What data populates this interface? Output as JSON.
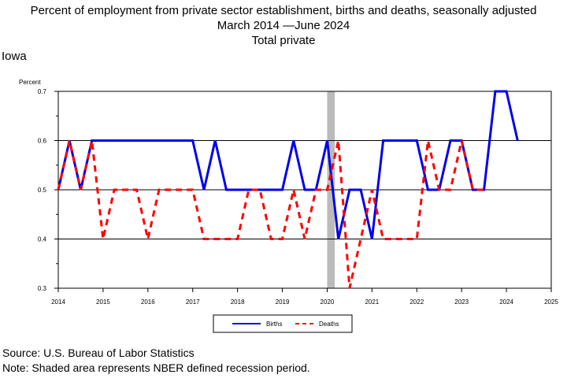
{
  "title": {
    "line1": "Percent of employment from private sector establishment, births and deaths, seasonally adjusted",
    "line2": "March 2014 —June 2024",
    "line3": "Total private"
  },
  "region": "Iowa",
  "footer": {
    "source": "Source: U.S. Bureau of Labor Statistics",
    "note": "Note: Shaded area represents NBER defined recession period."
  },
  "colors": {
    "births": "#0000ee",
    "deaths": "#ff0000",
    "recession": "#bbbbbb"
  },
  "chart_data": {
    "type": "line",
    "ylabel": "Percent",
    "ylim": [
      0.3,
      0.7
    ],
    "xlim": [
      2014,
      2025
    ],
    "yticks": [
      "0.3",
      "0.4",
      "0.5",
      "0.6",
      "0.7"
    ],
    "xticks": [
      "2014",
      "2015",
      "2016",
      "2017",
      "2018",
      "2019",
      "2020",
      "2021",
      "2022",
      "2023",
      "2024",
      "2025"
    ],
    "grid": "horizontal",
    "legend_position": "bottom",
    "recession": [
      2020.0,
      2020.17
    ],
    "series": [
      {
        "name": "Births",
        "style": "solid",
        "x": [
          2014.0,
          2014.25,
          2014.5,
          2014.75,
          2015.0,
          2015.25,
          2015.5,
          2015.75,
          2016.0,
          2016.25,
          2016.5,
          2016.75,
          2017.0,
          2017.25,
          2017.5,
          2017.75,
          2018.0,
          2018.25,
          2018.5,
          2018.75,
          2019.0,
          2019.25,
          2019.5,
          2019.75,
          2020.0,
          2020.25,
          2020.5,
          2020.75,
          2021.0,
          2021.25,
          2021.5,
          2021.75,
          2022.0,
          2022.25,
          2022.5,
          2022.75,
          2023.0,
          2023.25,
          2023.5,
          2023.75,
          2024.0,
          2024.25
        ],
        "values": [
          0.5,
          0.6,
          0.5,
          0.6,
          0.6,
          0.6,
          0.6,
          0.6,
          0.6,
          0.6,
          0.6,
          0.6,
          0.6,
          0.5,
          0.6,
          0.5,
          0.5,
          0.5,
          0.5,
          0.5,
          0.5,
          0.6,
          0.5,
          0.5,
          0.6,
          0.4,
          0.5,
          0.5,
          0.4,
          0.6,
          0.6,
          0.6,
          0.6,
          0.5,
          0.5,
          0.6,
          0.6,
          0.5,
          0.5,
          0.7,
          0.7,
          0.6
        ]
      },
      {
        "name": "Deaths",
        "style": "dashed",
        "x": [
          2014.0,
          2014.25,
          2014.5,
          2014.75,
          2015.0,
          2015.25,
          2015.5,
          2015.75,
          2016.0,
          2016.25,
          2016.5,
          2016.75,
          2017.0,
          2017.25,
          2017.5,
          2017.75,
          2018.0,
          2018.25,
          2018.5,
          2018.75,
          2019.0,
          2019.25,
          2019.5,
          2019.75,
          2020.0,
          2020.25,
          2020.5,
          2020.75,
          2021.0,
          2021.25,
          2021.5,
          2021.75,
          2022.0,
          2022.25,
          2022.5,
          2022.75,
          2023.0,
          2023.25,
          2023.5
        ],
        "values": [
          0.5,
          0.6,
          0.5,
          0.6,
          0.4,
          0.5,
          0.5,
          0.5,
          0.4,
          0.5,
          0.5,
          0.5,
          0.5,
          0.4,
          0.4,
          0.4,
          0.4,
          0.5,
          0.5,
          0.4,
          0.4,
          0.5,
          0.4,
          0.5,
          0.5,
          0.6,
          0.3,
          0.4,
          0.5,
          0.4,
          0.4,
          0.4,
          0.4,
          0.6,
          0.5,
          0.5,
          0.6,
          0.5,
          0.5
        ]
      }
    ]
  }
}
